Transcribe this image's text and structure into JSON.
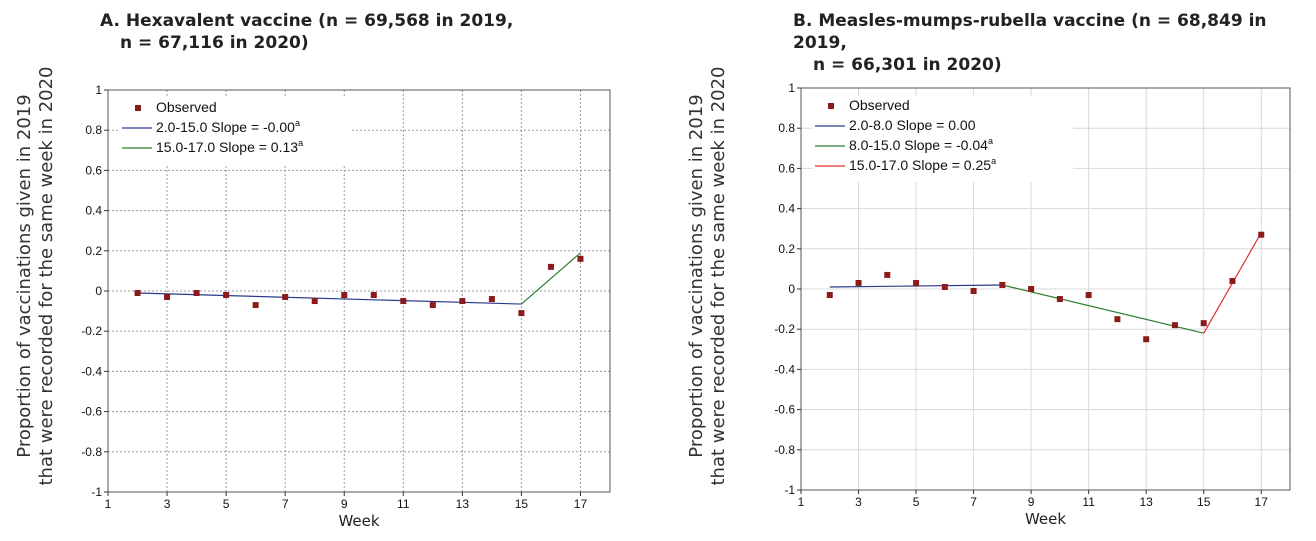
{
  "panels": [
    {
      "title_line1": "A. Hexavalent vaccine (n = 69,568 in 2019,",
      "title_line2": "n = 67,116 in 2020)",
      "ylabel_line1": "Proportion of vaccinations given in 2019",
      "ylabel_line2": "that were recorded for the same week in 2020",
      "xlabel": "Week"
    },
    {
      "title_line1": "B. Measles-mumps-rubella vaccine (n = 68,849 in 2019,",
      "title_line2": "n = 66,301 in 2020)",
      "ylabel_line1": "Proportion of vaccinations given in 2019",
      "ylabel_line2": "that were recorded for the same week in 2020",
      "xlabel": "Week"
    }
  ],
  "chart_data": [
    {
      "type": "scatter",
      "title": "A. Hexavalent vaccine (n = 69,568 in 2019, n = 67,116 in 2020)",
      "xlabel": "Week",
      "ylabel": "Proportion of vaccinations given in 2019 that were recorded for the same week in 2020",
      "xlim": [
        1,
        18
      ],
      "ylim": [
        -1,
        1
      ],
      "x_ticks": [
        1,
        3,
        5,
        7,
        9,
        11,
        13,
        15,
        17
      ],
      "y_ticks": [
        -1,
        -0.8,
        -0.6,
        -0.4,
        -0.2,
        0,
        0.2,
        0.4,
        0.6,
        0.8,
        1
      ],
      "y_tick_labels": [
        "-1",
        "-0.8",
        "-0.6",
        "-0.4",
        "-0.2",
        "0",
        "0.2",
        "0.4",
        "0.6",
        "0.8",
        "1"
      ],
      "grid": "dotted",
      "legend_position": "top-left",
      "observed": {
        "name": "Observed",
        "color": "#8b1a1a",
        "x": [
          2,
          3,
          4,
          5,
          6,
          7,
          8,
          9,
          10,
          11,
          12,
          13,
          14,
          15,
          16,
          17
        ],
        "y": [
          -0.01,
          -0.03,
          -0.01,
          -0.02,
          -0.07,
          -0.03,
          -0.05,
          -0.02,
          -0.02,
          -0.05,
          -0.07,
          -0.05,
          -0.04,
          -0.11,
          0.12,
          0.16
        ]
      },
      "segments": [
        {
          "name": "2.0-15.0 Slope  = -0.00",
          "sup": "a",
          "color": "#2b3a8c",
          "x": [
            2,
            15
          ],
          "y": [
            -0.01,
            -0.065
          ]
        },
        {
          "name": "15.0-17.0 Slope  =  0.13",
          "sup": "a",
          "color": "#2e7d32",
          "x": [
            15,
            17
          ],
          "y": [
            -0.065,
            0.19
          ]
        }
      ]
    },
    {
      "type": "scatter",
      "title": "B. Measles-mumps-rubella vaccine (n = 68,849 in 2019, n = 66,301 in 2020)",
      "xlabel": "Week",
      "ylabel": "Proportion of vaccinations given in 2019 that were recorded for the same week in 2020",
      "xlim": [
        1,
        18
      ],
      "ylim": [
        -1,
        1
      ],
      "x_ticks": [
        1,
        3,
        5,
        7,
        9,
        11,
        13,
        15,
        17
      ],
      "y_ticks": [
        -1,
        -0.8,
        -0.6,
        -0.4,
        -0.2,
        0,
        0.2,
        0.4,
        0.6,
        0.8,
        1
      ],
      "y_tick_labels": [
        "-1",
        "-0.8",
        "-0.6",
        "-0.4",
        "-0.2",
        "0",
        "0.2",
        "0.4",
        "0.6",
        "0.8",
        "1"
      ],
      "grid": "solid",
      "legend_position": "top-left",
      "observed": {
        "name": "Observed",
        "color": "#8b1a1a",
        "x": [
          2,
          3,
          4,
          5,
          6,
          7,
          8,
          9,
          10,
          11,
          12,
          13,
          14,
          15,
          16,
          17
        ],
        "y": [
          -0.03,
          0.03,
          0.07,
          0.03,
          0.01,
          -0.01,
          0.02,
          0.0,
          -0.05,
          -0.03,
          -0.15,
          -0.25,
          -0.18,
          -0.17,
          0.04,
          0.27
        ]
      },
      "segments": [
        {
          "name": "2.0-8.0 Slope  =  0.00",
          "sup": "",
          "color": "#2b3a8c",
          "x": [
            2,
            8
          ],
          "y": [
            0.01,
            0.02
          ]
        },
        {
          "name": "8.0-15.0 Slope  = -0.04",
          "sup": "a",
          "color": "#2e7d32",
          "x": [
            8,
            15
          ],
          "y": [
            0.02,
            -0.22
          ]
        },
        {
          "name": "15.0-17.0 Slope  =  0.25",
          "sup": "a",
          "color": "#e03030",
          "x": [
            15,
            17
          ],
          "y": [
            -0.22,
            0.28
          ]
        }
      ]
    }
  ]
}
